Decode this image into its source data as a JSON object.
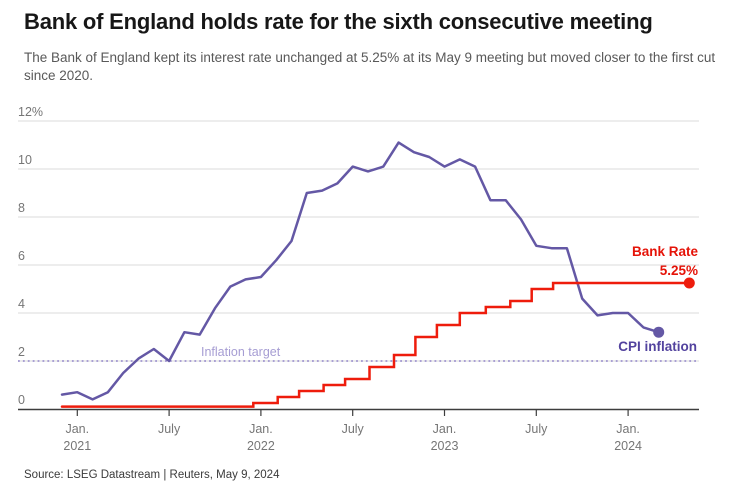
{
  "header": {
    "title": "Bank of England holds rate for the sixth consecutive meeting",
    "subtitle": "The Bank of England kept its interest rate unchanged at 5.25% at its May 9 meeting but moved closer to the first cut since 2020."
  },
  "footer": {
    "source": "Source: LSEG Datastream | Reuters, May 9, 2024"
  },
  "chart_data": {
    "type": "line",
    "x_start_month": "2020-12",
    "x_end_month": "2024-05",
    "ylim": [
      0,
      12
    ],
    "grid": true,
    "y_ticks": [
      {
        "value": 0,
        "label": "0"
      },
      {
        "value": 2,
        "label": "2"
      },
      {
        "value": 4,
        "label": "4"
      },
      {
        "value": 6,
        "label": "6"
      },
      {
        "value": 8,
        "label": "8"
      },
      {
        "value": 10,
        "label": "10"
      },
      {
        "value": 12,
        "label": "12%"
      }
    ],
    "x_ticks": [
      {
        "month_index": 1,
        "line1": "Jan.",
        "line2": "2021"
      },
      {
        "month_index": 7,
        "line1": "July",
        "line2": ""
      },
      {
        "month_index": 13,
        "line1": "Jan.",
        "line2": "2022"
      },
      {
        "month_index": 19,
        "line1": "July",
        "line2": ""
      },
      {
        "month_index": 25,
        "line1": "Jan.",
        "line2": "2023"
      },
      {
        "month_index": 31,
        "line1": "July",
        "line2": ""
      },
      {
        "month_index": 37,
        "line1": "Jan.",
        "line2": "2024"
      }
    ],
    "reference_line": {
      "value": 2,
      "label": "Inflation target",
      "line_color": "#8d80c5",
      "label_color": "#a69dd3"
    },
    "series": [
      {
        "name": "CPI inflation",
        "type": "line",
        "color": "#6458a5",
        "label_color": "#52429e",
        "start_month_index": 0,
        "values": [
          0.6,
          0.7,
          0.4,
          0.7,
          1.5,
          2.1,
          2.5,
          2.0,
          3.2,
          3.1,
          4.2,
          5.1,
          5.4,
          5.5,
          6.2,
          7.0,
          9.0,
          9.1,
          9.4,
          10.1,
          9.9,
          10.1,
          11.1,
          10.7,
          10.5,
          10.1,
          10.4,
          10.1,
          8.7,
          8.7,
          7.9,
          6.8,
          6.7,
          6.7,
          4.6,
          3.9,
          4.0,
          4.0,
          3.4,
          3.2
        ],
        "end_dot": true,
        "end_label_lines": [
          "CPI inflation"
        ]
      },
      {
        "name": "Bank Rate",
        "type": "step",
        "color": "#ee1c0c",
        "label_color": "#e51308",
        "steps": [
          {
            "month_index": 0,
            "rate": 0.1
          },
          {
            "month_index": 12.5,
            "rate": 0.25
          },
          {
            "month_index": 14.1,
            "rate": 0.5
          },
          {
            "month_index": 15.5,
            "rate": 0.75
          },
          {
            "month_index": 17.1,
            "rate": 1.0
          },
          {
            "month_index": 18.5,
            "rate": 1.25
          },
          {
            "month_index": 20.1,
            "rate": 1.75
          },
          {
            "month_index": 21.7,
            "rate": 2.25
          },
          {
            "month_index": 23.1,
            "rate": 3.0
          },
          {
            "month_index": 24.5,
            "rate": 3.5
          },
          {
            "month_index": 26.0,
            "rate": 4.0
          },
          {
            "month_index": 27.7,
            "rate": 4.25
          },
          {
            "month_index": 29.3,
            "rate": 4.5
          },
          {
            "month_index": 30.7,
            "rate": 5.0
          },
          {
            "month_index": 32.1,
            "rate": 5.25
          }
        ],
        "end_month_index": 41,
        "end_dot": true,
        "end_label_lines": [
          "Bank Rate",
          "5.25%"
        ]
      }
    ]
  }
}
